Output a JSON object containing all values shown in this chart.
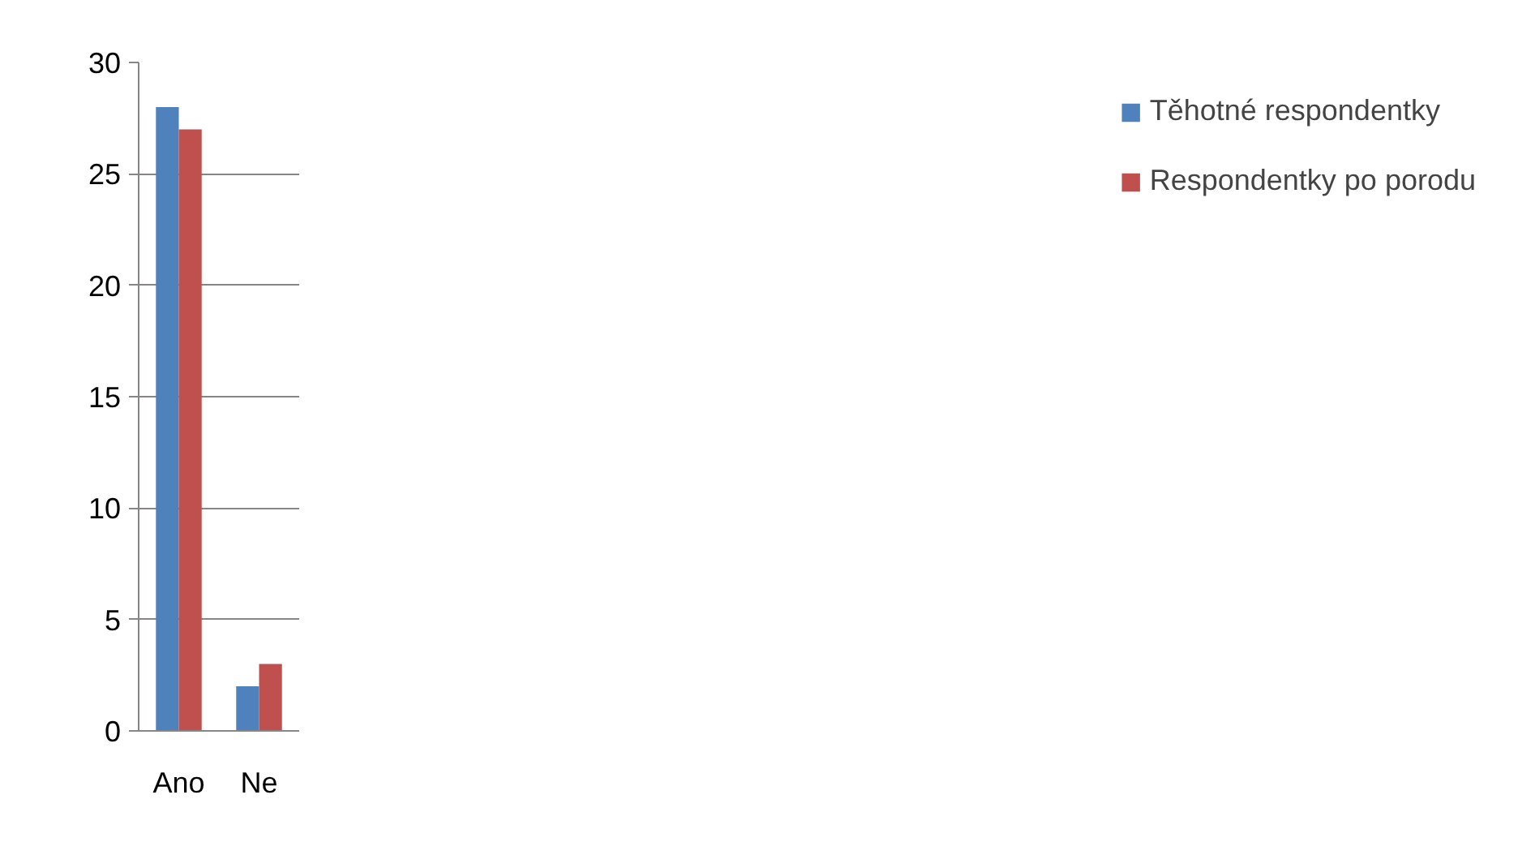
{
  "chart_data": {
    "type": "bar",
    "categories": [
      "Ano",
      "Ne"
    ],
    "series": [
      {
        "name": "Těhotné respondentky",
        "color": "#4f81bd",
        "values": [
          28,
          2
        ]
      },
      {
        "name": "Respondentky po porodu",
        "color": "#c0504d",
        "values": [
          27,
          3
        ]
      }
    ],
    "ylim": [
      0,
      30
    ],
    "yticks": [
      0,
      5,
      10,
      15,
      20,
      25,
      30
    ],
    "grid": "y",
    "legend": "right"
  }
}
